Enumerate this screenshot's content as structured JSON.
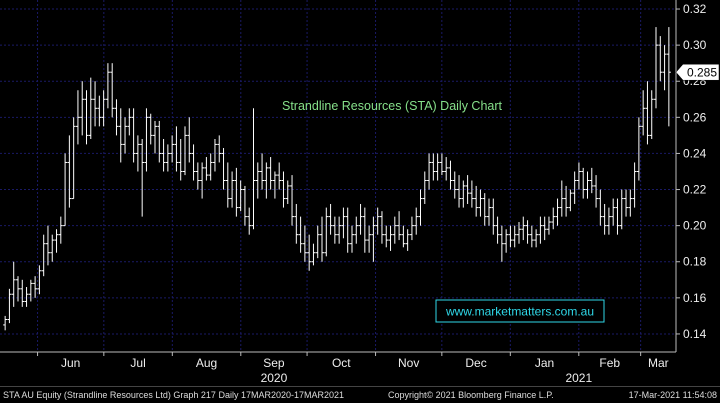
{
  "chart_data": {
    "type": "bar",
    "style": "ohlc",
    "title": "Strandline Resources (STA) Daily Chart",
    "watermark": "www.marketmatters.com.au",
    "xlabel": "",
    "ylabel": "",
    "ylim": [
      0.13,
      0.325
    ],
    "y_ticks": [
      "0.14",
      "0.16",
      "0.18",
      "0.20",
      "0.22",
      "0.24",
      "0.26",
      "0.28",
      "0.30",
      "0.32"
    ],
    "x_ticks": [
      {
        "label": "Jun",
        "date": "2020-06-01"
      },
      {
        "label": "Jul",
        "date": "2020-07-01"
      },
      {
        "label": "Aug",
        "date": "2020-08-01"
      },
      {
        "label": "Sep",
        "date": "2020-09-01"
      },
      {
        "label": "Oct",
        "date": "2020-10-01"
      },
      {
        "label": "Nov",
        "date": "2020-11-01"
      },
      {
        "label": "Dec",
        "date": "2020-12-01"
      },
      {
        "label": "Jan",
        "date": "2021-01-01"
      },
      {
        "label": "Feb",
        "date": "2021-02-01"
      },
      {
        "label": "Mar",
        "date": "2021-03-01"
      }
    ],
    "year_labels": [
      {
        "label": "2020",
        "date": "2020-09-16"
      },
      {
        "label": "2021",
        "date": "2021-02-01"
      }
    ],
    "last_price": 0.285,
    "last_price_label": "0.285",
    "grid": true,
    "axis_position": "right",
    "bar_color": "#ffffff",
    "background": "#000000",
    "grid_color": "#1a1a66",
    "title_color": "#86e08a",
    "watermark_color": "#2fd8e8",
    "start_date": "2020-05-15",
    "end_date": "2021-03-17",
    "points": [
      [
        0.145,
        0.15,
        0.142,
        0.148
      ],
      [
        0.148,
        0.165,
        0.146,
        0.162
      ],
      [
        0.162,
        0.18,
        0.155,
        0.17
      ],
      [
        0.17,
        0.172,
        0.158,
        0.165
      ],
      [
        0.165,
        0.17,
        0.155,
        0.158
      ],
      [
        0.158,
        0.166,
        0.155,
        0.162
      ],
      [
        0.162,
        0.17,
        0.158,
        0.168
      ],
      [
        0.168,
        0.172,
        0.16,
        0.165
      ],
      [
        0.165,
        0.178,
        0.162,
        0.175
      ],
      [
        0.175,
        0.195,
        0.172,
        0.19
      ],
      [
        0.19,
        0.2,
        0.178,
        0.185
      ],
      [
        0.185,
        0.195,
        0.18,
        0.192
      ],
      [
        0.192,
        0.198,
        0.185,
        0.195
      ],
      [
        0.195,
        0.205,
        0.19,
        0.2
      ],
      [
        0.2,
        0.24,
        0.2,
        0.235
      ],
      [
        0.235,
        0.25,
        0.21,
        0.215
      ],
      [
        0.215,
        0.26,
        0.215,
        0.255
      ],
      [
        0.255,
        0.275,
        0.245,
        0.26
      ],
      [
        0.26,
        0.28,
        0.25,
        0.27
      ],
      [
        0.27,
        0.275,
        0.245,
        0.25
      ],
      [
        0.25,
        0.282,
        0.248,
        0.27
      ],
      [
        0.27,
        0.28,
        0.255,
        0.265
      ],
      [
        0.265,
        0.272,
        0.255,
        0.26
      ],
      [
        0.26,
        0.275,
        0.255,
        0.27
      ],
      [
        0.27,
        0.29,
        0.265,
        0.285
      ],
      [
        0.285,
        0.29,
        0.26,
        0.265
      ],
      [
        0.265,
        0.27,
        0.25,
        0.255
      ],
      [
        0.255,
        0.265,
        0.235,
        0.245
      ],
      [
        0.245,
        0.26,
        0.24,
        0.255
      ],
      [
        0.255,
        0.265,
        0.25,
        0.26
      ],
      [
        0.26,
        0.265,
        0.235,
        0.24
      ],
      [
        0.24,
        0.25,
        0.23,
        0.245
      ],
      [
        0.245,
        0.248,
        0.205,
        0.235
      ],
      [
        0.235,
        0.265,
        0.23,
        0.26
      ],
      [
        0.26,
        0.262,
        0.245,
        0.25
      ],
      [
        0.25,
        0.258,
        0.24,
        0.255
      ],
      [
        0.255,
        0.258,
        0.235,
        0.24
      ],
      [
        0.24,
        0.248,
        0.23,
        0.235
      ],
      [
        0.235,
        0.245,
        0.23,
        0.24
      ],
      [
        0.24,
        0.25,
        0.235,
        0.245
      ],
      [
        0.245,
        0.255,
        0.23,
        0.235
      ],
      [
        0.235,
        0.248,
        0.225,
        0.23
      ],
      [
        0.23,
        0.255,
        0.228,
        0.25
      ],
      [
        0.25,
        0.26,
        0.235,
        0.24
      ],
      [
        0.24,
        0.245,
        0.225,
        0.23
      ],
      [
        0.23,
        0.235,
        0.22,
        0.225
      ],
      [
        0.225,
        0.235,
        0.215,
        0.232
      ],
      [
        0.232,
        0.238,
        0.225,
        0.228
      ],
      [
        0.228,
        0.24,
        0.225,
        0.235
      ],
      [
        0.235,
        0.248,
        0.23,
        0.245
      ],
      [
        0.245,
        0.25,
        0.235,
        0.24
      ],
      [
        0.24,
        0.243,
        0.22,
        0.225
      ],
      [
        0.225,
        0.235,
        0.21,
        0.215
      ],
      [
        0.215,
        0.23,
        0.21,
        0.225
      ],
      [
        0.225,
        0.232,
        0.205,
        0.21
      ],
      [
        0.21,
        0.225,
        0.208,
        0.22
      ],
      [
        0.22,
        0.222,
        0.2,
        0.205
      ],
      [
        0.205,
        0.21,
        0.195,
        0.2
      ],
      [
        0.2,
        0.265,
        0.198,
        0.225
      ],
      [
        0.225,
        0.235,
        0.215,
        0.23
      ],
      [
        0.23,
        0.24,
        0.22,
        0.225
      ],
      [
        0.225,
        0.235,
        0.215,
        0.232
      ],
      [
        0.232,
        0.238,
        0.22,
        0.225
      ],
      [
        0.225,
        0.23,
        0.215,
        0.228
      ],
      [
        0.228,
        0.235,
        0.22,
        0.225
      ],
      [
        0.225,
        0.23,
        0.21,
        0.215
      ],
      [
        0.215,
        0.225,
        0.212,
        0.222
      ],
      [
        0.222,
        0.228,
        0.2,
        0.205
      ],
      [
        0.205,
        0.212,
        0.19,
        0.195
      ],
      [
        0.195,
        0.205,
        0.185,
        0.19
      ],
      [
        0.19,
        0.2,
        0.18,
        0.185
      ],
      [
        0.185,
        0.195,
        0.175,
        0.18
      ],
      [
        0.18,
        0.19,
        0.178,
        0.185
      ],
      [
        0.185,
        0.2,
        0.182,
        0.195
      ],
      [
        0.195,
        0.205,
        0.18,
        0.185
      ],
      [
        0.185,
        0.21,
        0.183,
        0.205
      ],
      [
        0.205,
        0.212,
        0.195,
        0.2
      ],
      [
        0.2,
        0.205,
        0.19,
        0.195
      ],
      [
        0.195,
        0.205,
        0.19,
        0.2
      ],
      [
        0.2,
        0.21,
        0.193,
        0.205
      ],
      [
        0.205,
        0.21,
        0.185,
        0.19
      ],
      [
        0.19,
        0.2,
        0.185,
        0.195
      ],
      [
        0.195,
        0.205,
        0.19,
        0.2
      ],
      [
        0.2,
        0.212,
        0.195,
        0.205
      ],
      [
        0.205,
        0.21,
        0.185,
        0.192
      ],
      [
        0.192,
        0.2,
        0.185,
        0.195
      ],
      [
        0.195,
        0.205,
        0.18,
        0.2
      ],
      [
        0.2,
        0.21,
        0.195,
        0.205
      ],
      [
        0.205,
        0.208,
        0.19,
        0.195
      ],
      [
        0.195,
        0.2,
        0.188,
        0.192
      ],
      [
        0.192,
        0.2,
        0.186,
        0.195
      ],
      [
        0.195,
        0.205,
        0.19,
        0.2
      ],
      [
        0.2,
        0.208,
        0.192,
        0.195
      ],
      [
        0.195,
        0.2,
        0.188,
        0.19
      ],
      [
        0.19,
        0.198,
        0.186,
        0.195
      ],
      [
        0.195,
        0.205,
        0.192,
        0.2
      ],
      [
        0.2,
        0.21,
        0.195,
        0.205
      ],
      [
        0.205,
        0.22,
        0.2,
        0.215
      ],
      [
        0.215,
        0.23,
        0.212,
        0.225
      ],
      [
        0.225,
        0.24,
        0.22,
        0.235
      ],
      [
        0.235,
        0.24,
        0.225,
        0.23
      ],
      [
        0.23,
        0.24,
        0.225,
        0.235
      ],
      [
        0.235,
        0.24,
        0.228,
        0.23
      ],
      [
        0.23,
        0.238,
        0.225,
        0.232
      ],
      [
        0.232,
        0.236,
        0.22,
        0.225
      ],
      [
        0.225,
        0.23,
        0.215,
        0.22
      ],
      [
        0.22,
        0.228,
        0.21,
        0.215
      ],
      [
        0.215,
        0.225,
        0.21,
        0.222
      ],
      [
        0.222,
        0.228,
        0.212,
        0.218
      ],
      [
        0.218,
        0.225,
        0.21,
        0.215
      ],
      [
        0.215,
        0.222,
        0.205,
        0.21
      ],
      [
        0.21,
        0.22,
        0.205,
        0.215
      ],
      [
        0.215,
        0.218,
        0.2,
        0.205
      ],
      [
        0.205,
        0.215,
        0.2,
        0.21
      ],
      [
        0.21,
        0.215,
        0.195,
        0.2
      ],
      [
        0.2,
        0.205,
        0.19,
        0.195
      ],
      [
        0.195,
        0.2,
        0.18,
        0.19
      ],
      [
        0.19,
        0.198,
        0.185,
        0.195
      ],
      [
        0.195,
        0.2,
        0.188,
        0.192
      ],
      [
        0.192,
        0.2,
        0.188,
        0.195
      ],
      [
        0.195,
        0.202,
        0.19,
        0.198
      ],
      [
        0.198,
        0.205,
        0.192,
        0.2
      ],
      [
        0.2,
        0.203,
        0.19,
        0.195
      ],
      [
        0.195,
        0.2,
        0.188,
        0.192
      ],
      [
        0.192,
        0.198,
        0.188,
        0.195
      ],
      [
        0.195,
        0.205,
        0.19,
        0.2
      ],
      [
        0.2,
        0.205,
        0.192,
        0.198
      ],
      [
        0.198,
        0.205,
        0.195,
        0.202
      ],
      [
        0.202,
        0.21,
        0.198,
        0.205
      ],
      [
        0.205,
        0.215,
        0.2,
        0.21
      ],
      [
        0.21,
        0.225,
        0.205,
        0.215
      ],
      [
        0.215,
        0.222,
        0.205,
        0.21
      ],
      [
        0.21,
        0.22,
        0.208,
        0.218
      ],
      [
        0.218,
        0.23,
        0.212,
        0.225
      ],
      [
        0.225,
        0.235,
        0.22,
        0.23
      ],
      [
        0.23,
        0.232,
        0.215,
        0.22
      ],
      [
        0.22,
        0.23,
        0.215,
        0.225
      ],
      [
        0.225,
        0.232,
        0.218,
        0.222
      ],
      [
        0.222,
        0.228,
        0.21,
        0.215
      ],
      [
        0.215,
        0.22,
        0.2,
        0.205
      ],
      [
        0.205,
        0.212,
        0.195,
        0.2
      ],
      [
        0.2,
        0.21,
        0.195,
        0.205
      ],
      [
        0.205,
        0.215,
        0.2,
        0.21
      ],
      [
        0.21,
        0.215,
        0.195,
        0.2
      ],
      [
        0.2,
        0.22,
        0.198,
        0.215
      ],
      [
        0.215,
        0.22,
        0.205,
        0.21
      ],
      [
        0.21,
        0.22,
        0.205,
        0.215
      ],
      [
        0.215,
        0.235,
        0.21,
        0.23
      ],
      [
        0.23,
        0.26,
        0.225,
        0.255
      ],
      [
        0.255,
        0.275,
        0.25,
        0.265
      ],
      [
        0.265,
        0.28,
        0.245,
        0.25
      ],
      [
        0.25,
        0.275,
        0.248,
        0.27
      ],
      [
        0.27,
        0.31,
        0.265,
        0.3
      ],
      [
        0.3,
        0.305,
        0.28,
        0.285
      ],
      [
        0.285,
        0.3,
        0.275,
        0.295
      ],
      [
        0.295,
        0.31,
        0.255,
        0.285
      ]
    ]
  },
  "footer": {
    "left": "STA AU Equity (Strandline Resources Ltd) Graph 217  Daily 17MAR2020-17MAR2021",
    "middle": "Copyright© 2021 Bloomberg Finance L.P.",
    "right": "17-Mar-2021 11:54:08"
  }
}
